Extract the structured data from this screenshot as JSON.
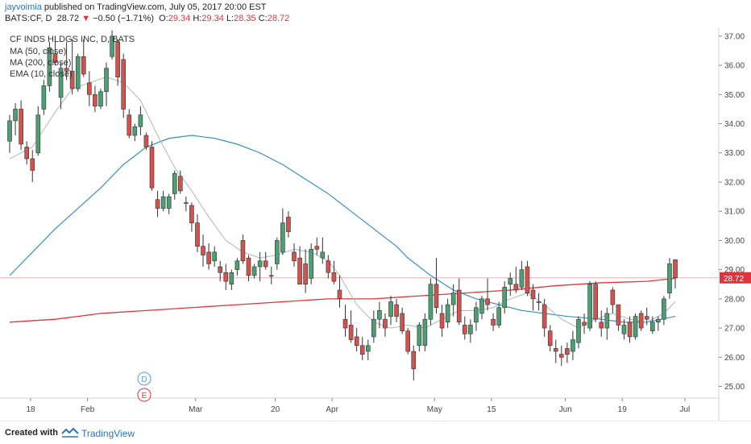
{
  "header": {
    "username": "jayvoimia",
    "published": "published on TradingView.com, July 05, 2017 20:00 EST",
    "symbol": "BATS:CF, D",
    "last": "28.72",
    "arrow": "▼",
    "change": "−0.50 (−1.71%)",
    "o_label": "O:",
    "o": "29.34",
    "h_label": "H:",
    "h": "29.34",
    "l_label": "L:",
    "l": "28.35",
    "c_label": "C:",
    "c": "28.72"
  },
  "footer": {
    "created_with": "Created with",
    "brand": "TradingView"
  },
  "chart_data": {
    "type": "candlestick",
    "title": "CF INDS HLDGS INC, D, BATS",
    "legend": [
      "MA (50, close)",
      "MA (200, close)",
      "EMA (10, close)"
    ],
    "y_ticks": [
      "37.00",
      "36.00",
      "35.00",
      "34.00",
      "33.00",
      "32.00",
      "31.00",
      "30.00",
      "29.00",
      "28.00",
      "27.00",
      "26.00",
      "25.00"
    ],
    "ylim": [
      24.6,
      37.3
    ],
    "x_ticks": [
      {
        "label": "18",
        "i": 0
      },
      {
        "label": "Feb",
        "i": 10
      },
      {
        "label": "Mar",
        "i": 29
      },
      {
        "label": "20",
        "i": 43
      },
      {
        "label": "Apr",
        "i": 53
      },
      {
        "label": "May",
        "i": 71
      },
      {
        "label": "15",
        "i": 81
      },
      {
        "label": "Jun",
        "i": 94
      },
      {
        "label": "19",
        "i": 104
      },
      {
        "label": "Jul",
        "i": 115
      }
    ],
    "last_price": 28.72,
    "last_price_label": "28.72",
    "grid": false,
    "legend_position": "top-left",
    "event_markers": [
      "D",
      "E"
    ],
    "colors": {
      "up": "#4d9e72",
      "down": "#d0534e",
      "ma50": "#3a8fc0",
      "ma200": "#e0343a",
      "ema10": "#a8b7c2",
      "price_label": "#e0343a"
    },
    "ohlc": [
      [
        33.4,
        34.3,
        33.0,
        34.1
      ],
      [
        34.1,
        34.7,
        33.6,
        34.5
      ],
      [
        34.5,
        34.8,
        33.1,
        33.3
      ],
      [
        33.2,
        33.4,
        32.6,
        32.8
      ],
      [
        32.8,
        33.1,
        32.0,
        32.4
      ],
      [
        33.0,
        34.6,
        32.9,
        34.3
      ],
      [
        34.5,
        35.5,
        34.3,
        35.3
      ],
      [
        35.3,
        36.8,
        35.1,
        36.6
      ],
      [
        36.4,
        37.0,
        36.0,
        36.1
      ],
      [
        34.9,
        36.1,
        34.5,
        35.9
      ],
      [
        35.9,
        36.8,
        35.5,
        35.8
      ],
      [
        35.8,
        36.9,
        35.0,
        35.2
      ],
      [
        35.2,
        36.4,
        35.1,
        36.3
      ],
      [
        36.3,
        36.9,
        35.6,
        35.7
      ],
      [
        35.4,
        35.8,
        34.6,
        35.0
      ],
      [
        35.0,
        35.3,
        34.4,
        34.6
      ],
      [
        34.6,
        35.2,
        34.5,
        35.1
      ],
      [
        35.1,
        36.1,
        34.6,
        35.9
      ],
      [
        36.3,
        37.2,
        36.2,
        37.0
      ],
      [
        36.8,
        36.9,
        35.3,
        35.6
      ],
      [
        36.2,
        36.4,
        34.2,
        34.5
      ],
      [
        34.3,
        34.5,
        33.5,
        33.6
      ],
      [
        33.6,
        34.0,
        33.4,
        33.9
      ],
      [
        33.9,
        34.6,
        33.6,
        34.3
      ],
      [
        33.6,
        33.7,
        33.1,
        33.2
      ],
      [
        33.2,
        33.4,
        31.7,
        31.8
      ],
      [
        31.4,
        31.7,
        30.8,
        31.1
      ],
      [
        31.1,
        31.7,
        31.0,
        31.5
      ],
      [
        31.1,
        31.6,
        30.9,
        31.5
      ],
      [
        31.6,
        32.4,
        31.4,
        32.3
      ],
      [
        32.2,
        32.4,
        31.6,
        31.7
      ],
      [
        31.3,
        31.5,
        31.0,
        31.3
      ],
      [
        31.2,
        31.3,
        30.3,
        30.6
      ],
      [
        30.6,
        30.9,
        29.6,
        29.8
      ],
      [
        29.8,
        30.2,
        29.1,
        29.5
      ],
      [
        29.6,
        29.9,
        29.0,
        29.2
      ],
      [
        29.3,
        29.8,
        29.1,
        29.6
      ],
      [
        29.1,
        29.3,
        28.6,
        28.9
      ],
      [
        28.9,
        29.2,
        28.3,
        28.6
      ],
      [
        28.5,
        29.0,
        28.3,
        28.9
      ],
      [
        29.0,
        29.4,
        28.8,
        29.3
      ],
      [
        30.0,
        30.2,
        29.2,
        29.3
      ],
      [
        29.4,
        29.5,
        28.6,
        28.8
      ],
      [
        28.8,
        29.2,
        28.7,
        29.1
      ],
      [
        29.1,
        29.6,
        28.6,
        29.3
      ],
      [
        29.3,
        29.6,
        29.0,
        29.1
      ],
      [
        28.8,
        29.1,
        28.5,
        28.8
      ],
      [
        29.2,
        30.1,
        29.0,
        30.0
      ],
      [
        29.6,
        31.1,
        29.5,
        30.6
      ],
      [
        30.8,
        31.0,
        30.1,
        30.3
      ],
      [
        29.6,
        29.9,
        29.1,
        29.3
      ],
      [
        29.4,
        29.8,
        28.5,
        28.5
      ],
      [
        29.2,
        29.7,
        28.2,
        28.5
      ],
      [
        28.7,
        29.9,
        28.5,
        29.7
      ],
      [
        29.8,
        30.1,
        29.5,
        29.7
      ],
      [
        29.4,
        30.1,
        29.2,
        29.6
      ],
      [
        29.3,
        29.5,
        28.7,
        28.9
      ],
      [
        28.9,
        29.3,
        28.5,
        28.6
      ],
      [
        28.3,
        28.8,
        27.7,
        28.0
      ],
      [
        27.3,
        27.8,
        26.7,
        27.0
      ],
      [
        27.1,
        27.6,
        26.5,
        26.6
      ],
      [
        26.7,
        27.0,
        26.2,
        26.4
      ],
      [
        26.4,
        26.7,
        25.9,
        26.1
      ],
      [
        26.2,
        26.6,
        25.9,
        26.4
      ],
      [
        26.7,
        27.6,
        26.5,
        27.3
      ],
      [
        27.3,
        27.9,
        27.0,
        27.6
      ],
      [
        27.3,
        27.5,
        26.7,
        27.0
      ],
      [
        27.4,
        28.1,
        27.1,
        27.9
      ],
      [
        27.8,
        28.0,
        27.2,
        27.4
      ],
      [
        27.5,
        27.7,
        26.8,
        26.9
      ],
      [
        26.9,
        27.0,
        26.1,
        26.2
      ],
      [
        26.2,
        26.4,
        25.2,
        25.6
      ],
      [
        26.4,
        27.2,
        26.2,
        27.1
      ],
      [
        26.4,
        27.5,
        26.2,
        27.3
      ],
      [
        27.3,
        28.7,
        27.1,
        28.5
      ],
      [
        28.5,
        29.4,
        27.5,
        27.7
      ],
      [
        27.5,
        27.8,
        26.7,
        27.0
      ],
      [
        27.2,
        28.0,
        27.0,
        27.8
      ],
      [
        27.8,
        28.5,
        27.4,
        28.2
      ],
      [
        28.3,
        28.7,
        27.1,
        27.2
      ],
      [
        27.1,
        27.4,
        26.6,
        26.8
      ],
      [
        26.8,
        27.3,
        26.5,
        27.1
      ],
      [
        27.2,
        27.9,
        26.9,
        27.7
      ],
      [
        27.5,
        28.1,
        27.3,
        28.0
      ],
      [
        28.0,
        28.7,
        27.6,
        27.8
      ],
      [
        27.3,
        27.5,
        26.9,
        27.1
      ],
      [
        27.1,
        27.9,
        27.0,
        27.7
      ],
      [
        27.7,
        28.6,
        27.5,
        28.4
      ],
      [
        28.5,
        28.9,
        28.1,
        28.7
      ],
      [
        28.5,
        29.1,
        28.2,
        28.3
      ],
      [
        28.4,
        29.3,
        28.3,
        29.0
      ],
      [
        29.1,
        29.3,
        28.1,
        28.2
      ],
      [
        28.3,
        28.5,
        27.6,
        28.0
      ],
      [
        27.9,
        28.2,
        27.6,
        27.9
      ],
      [
        27.8,
        28.0,
        26.7,
        27.0
      ],
      [
        26.9,
        27.1,
        26.2,
        26.4
      ],
      [
        26.3,
        26.6,
        25.8,
        26.2
      ],
      [
        26.1,
        26.4,
        25.7,
        26.0
      ],
      [
        26.3,
        26.5,
        25.8,
        26.1
      ],
      [
        26.2,
        26.9,
        25.9,
        26.6
      ],
      [
        26.5,
        27.4,
        26.3,
        27.3
      ],
      [
        27.2,
        27.5,
        26.8,
        27.1
      ],
      [
        27.0,
        28.6,
        26.9,
        28.5
      ],
      [
        28.5,
        28.6,
        27.2,
        27.3
      ],
      [
        27.2,
        27.6,
        26.7,
        27.0
      ],
      [
        27.0,
        27.7,
        26.6,
        27.5
      ],
      [
        28.3,
        28.4,
        27.5,
        27.8
      ],
      [
        27.8,
        27.8,
        26.9,
        27.1
      ],
      [
        26.8,
        27.3,
        26.6,
        27.1
      ],
      [
        27.2,
        27.4,
        26.5,
        26.7
      ],
      [
        26.7,
        27.5,
        26.6,
        27.4
      ],
      [
        27.5,
        27.6,
        26.9,
        27.0
      ],
      [
        27.4,
        27.7,
        27.1,
        27.3
      ],
      [
        26.9,
        27.4,
        26.8,
        27.2
      ],
      [
        27.2,
        27.4,
        26.9,
        27.3
      ],
      [
        27.3,
        28.1,
        27.1,
        28.0
      ],
      [
        28.2,
        29.4,
        28.0,
        29.2
      ],
      [
        29.34,
        29.34,
        28.35,
        28.72
      ]
    ],
    "ma50": [
      [
        0,
        28.8
      ],
      [
        4,
        29.6
      ],
      [
        8,
        30.4
      ],
      [
        12,
        31.1
      ],
      [
        16,
        31.8
      ],
      [
        20,
        32.6
      ],
      [
        24,
        33.2
      ],
      [
        28,
        33.5
      ],
      [
        32,
        33.6
      ],
      [
        36,
        33.5
      ],
      [
        40,
        33.3
      ],
      [
        44,
        33.0
      ],
      [
        48,
        32.6
      ],
      [
        52,
        32.1
      ],
      [
        56,
        31.6
      ],
      [
        60,
        31.0
      ],
      [
        64,
        30.4
      ],
      [
        68,
        29.8
      ],
      [
        70,
        29.4
      ],
      [
        74,
        28.8
      ],
      [
        78,
        28.3
      ],
      [
        82,
        28.0
      ],
      [
        86,
        27.8
      ],
      [
        90,
        27.6
      ],
      [
        94,
        27.5
      ],
      [
        98,
        27.4
      ],
      [
        104,
        27.3
      ],
      [
        108,
        27.2
      ],
      [
        112,
        27.2
      ],
      [
        117,
        27.4
      ]
    ],
    "ma200": [
      [
        0,
        27.2
      ],
      [
        8,
        27.3
      ],
      [
        16,
        27.5
      ],
      [
        24,
        27.6
      ],
      [
        32,
        27.7
      ],
      [
        40,
        27.8
      ],
      [
        48,
        27.9
      ],
      [
        56,
        28.0
      ],
      [
        64,
        28.0
      ],
      [
        72,
        28.1
      ],
      [
        80,
        28.2
      ],
      [
        88,
        28.3
      ],
      [
        96,
        28.45
      ],
      [
        104,
        28.55
      ],
      [
        112,
        28.6
      ],
      [
        117,
        28.7
      ]
    ],
    "ema10": [
      [
        0,
        32.8
      ],
      [
        4,
        33.2
      ],
      [
        8,
        34.4
      ],
      [
        11,
        35.2
      ],
      [
        14,
        35.4
      ],
      [
        17,
        35.6
      ],
      [
        20,
        35.4
      ],
      [
        23,
        34.8
      ],
      [
        26,
        33.6
      ],
      [
        29,
        32.5
      ],
      [
        32,
        31.7
      ],
      [
        35,
        30.8
      ],
      [
        38,
        30.0
      ],
      [
        41,
        29.6
      ],
      [
        44,
        29.4
      ],
      [
        47,
        29.5
      ],
      [
        50,
        29.7
      ],
      [
        53,
        29.6
      ],
      [
        56,
        29.3
      ],
      [
        58,
        28.8
      ],
      [
        61,
        27.8
      ],
      [
        64,
        27.2
      ],
      [
        67,
        27.0
      ],
      [
        70,
        27.1
      ],
      [
        73,
        27.0
      ],
      [
        76,
        27.3
      ],
      [
        79,
        27.6
      ],
      [
        82,
        27.6
      ],
      [
        85,
        27.7
      ],
      [
        88,
        28.0
      ],
      [
        91,
        28.2
      ],
      [
        94,
        27.8
      ],
      [
        97,
        27.3
      ],
      [
        100,
        27.0
      ],
      [
        103,
        27.3
      ],
      [
        106,
        27.5
      ],
      [
        109,
        27.3
      ],
      [
        112,
        27.2
      ],
      [
        115,
        27.5
      ],
      [
        117,
        27.9
      ]
    ]
  }
}
